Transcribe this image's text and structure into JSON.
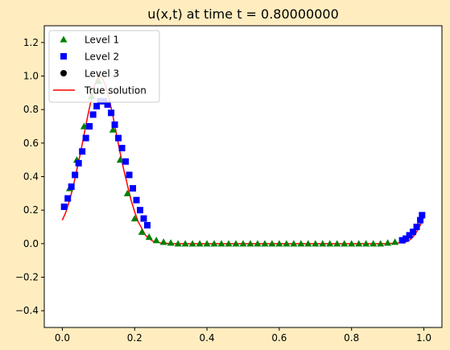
{
  "chart_data": {
    "type": "line",
    "title": "u(x,t) at time t =      0.80000000",
    "xlabel": "",
    "ylabel": "",
    "xlim": [
      -0.05,
      1.05
    ],
    "ylim": [
      -0.5,
      1.3
    ],
    "xticks": [
      0.0,
      0.2,
      0.4,
      0.6,
      0.8,
      1.0
    ],
    "xtick_labels": [
      "0.0",
      "0.2",
      "0.4",
      "0.6",
      "0.8",
      "1.0"
    ],
    "yticks": [
      -0.4,
      -0.2,
      0.0,
      0.2,
      0.4,
      0.6,
      0.8,
      1.0,
      1.2
    ],
    "ytick_labels": [
      "−0.4",
      "−0.2",
      "0.0",
      "0.2",
      "0.4",
      "0.6",
      "0.8",
      "1.0",
      "1.2"
    ],
    "grid": false,
    "legend_position": "top-left",
    "series": [
      {
        "name": "Level 1",
        "marker": "triangle",
        "color": "#008000",
        "x": [
          0.02,
          0.04,
          0.06,
          0.08,
          0.1,
          0.12,
          0.14,
          0.16,
          0.18,
          0.2,
          0.22,
          0.24,
          0.26,
          0.28,
          0.3,
          0.32,
          0.34,
          0.36,
          0.38,
          0.4,
          0.42,
          0.44,
          0.46,
          0.48,
          0.5,
          0.52,
          0.54,
          0.56,
          0.58,
          0.6,
          0.62,
          0.64,
          0.66,
          0.68,
          0.7,
          0.72,
          0.74,
          0.76,
          0.78,
          0.8,
          0.82,
          0.84,
          0.86,
          0.88,
          0.9,
          0.92
        ],
        "y": [
          0.33,
          0.5,
          0.7,
          0.88,
          0.97,
          0.85,
          0.68,
          0.5,
          0.3,
          0.15,
          0.07,
          0.04,
          0.02,
          0.01,
          0.005,
          0.0,
          0.0,
          0.0,
          0.0,
          0.0,
          0.0,
          0.0,
          0.0,
          0.0,
          0.0,
          0.0,
          0.0,
          0.0,
          0.0,
          0.0,
          0.0,
          0.0,
          0.0,
          0.0,
          0.0,
          0.0,
          0.0,
          0.0,
          0.0,
          0.0,
          0.0,
          0.0,
          0.0,
          0.0,
          0.005,
          0.01
        ]
      },
      {
        "name": "Level 2",
        "marker": "square",
        "color": "#0000ff",
        "x": [
          0.005,
          0.015,
          0.025,
          0.035,
          0.045,
          0.055,
          0.065,
          0.075,
          0.085,
          0.095,
          0.105,
          0.115,
          0.125,
          0.135,
          0.145,
          0.155,
          0.165,
          0.175,
          0.185,
          0.195,
          0.205,
          0.215,
          0.225,
          0.235,
          0.94,
          0.95,
          0.96,
          0.97,
          0.98,
          0.99,
          0.995
        ],
        "y": [
          0.22,
          0.27,
          0.34,
          0.41,
          0.48,
          0.55,
          0.63,
          0.7,
          0.77,
          0.82,
          0.85,
          0.85,
          0.83,
          0.78,
          0.71,
          0.63,
          0.57,
          0.49,
          0.41,
          0.33,
          0.26,
          0.2,
          0.15,
          0.11,
          0.02,
          0.03,
          0.05,
          0.07,
          0.1,
          0.14,
          0.17
        ]
      },
      {
        "name": "Level 3",
        "marker": "circle",
        "color": "#000000",
        "x": [],
        "y": []
      },
      {
        "name": "True solution",
        "marker": "line",
        "color": "#ff0000",
        "x": [
          0.0,
          0.01,
          0.02,
          0.03,
          0.04,
          0.05,
          0.06,
          0.07,
          0.08,
          0.09,
          0.1,
          0.11,
          0.12,
          0.13,
          0.14,
          0.15,
          0.16,
          0.17,
          0.18,
          0.19,
          0.2,
          0.21,
          0.22,
          0.23,
          0.24,
          0.25,
          0.27,
          0.3,
          0.35,
          0.4,
          0.5,
          0.6,
          0.7,
          0.8,
          0.9,
          0.93,
          0.95,
          0.96,
          0.97,
          0.98,
          0.99,
          1.0
        ],
        "y": [
          0.14,
          0.19,
          0.26,
          0.34,
          0.44,
          0.54,
          0.65,
          0.76,
          0.86,
          0.95,
          1.0,
          0.99,
          0.94,
          0.86,
          0.76,
          0.65,
          0.54,
          0.44,
          0.35,
          0.26,
          0.19,
          0.13,
          0.09,
          0.05,
          0.03,
          0.015,
          0.005,
          0.0,
          0.0,
          0.0,
          0.0,
          0.0,
          0.0,
          0.0,
          0.0,
          0.005,
          0.01,
          0.02,
          0.04,
          0.07,
          0.11,
          0.16
        ]
      }
    ]
  }
}
